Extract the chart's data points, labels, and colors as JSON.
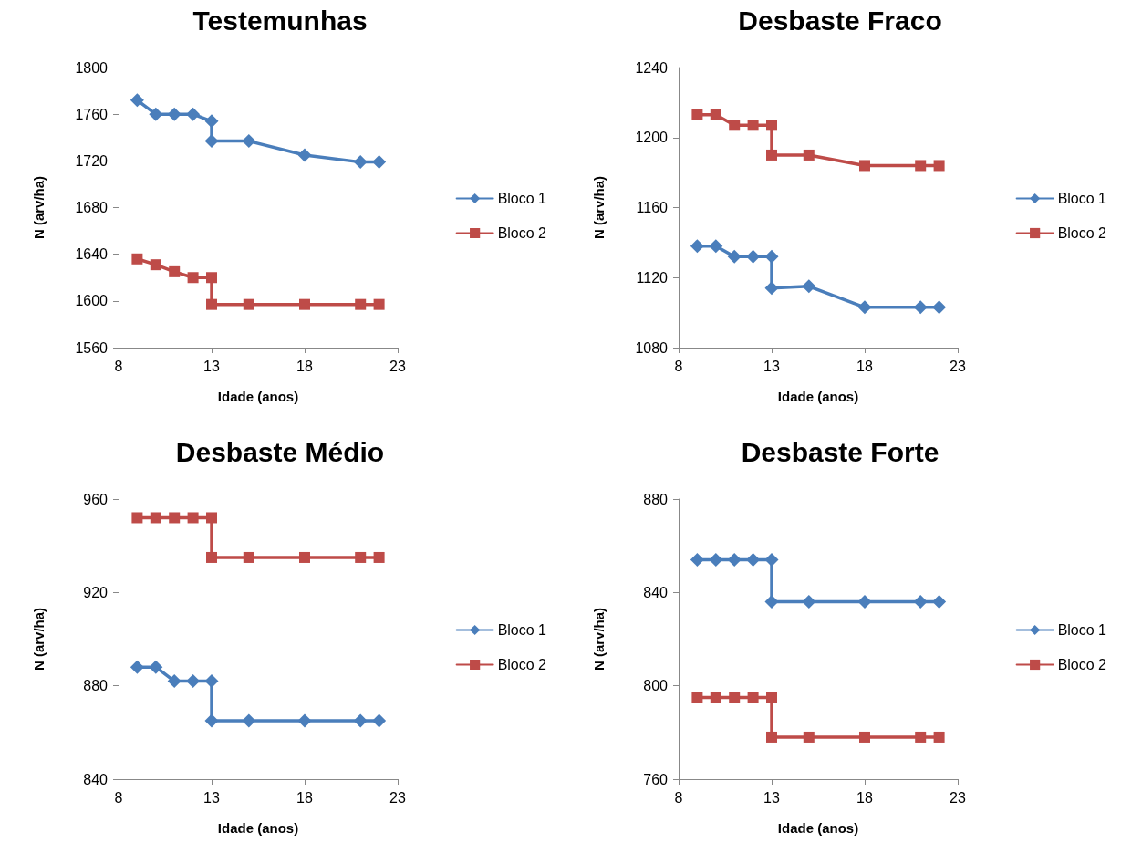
{
  "chart_data": [
    {
      "type": "line",
      "title": "Testemunhas",
      "xlabel": "Idade (anos)",
      "ylabel": "N (arv/ha)",
      "x": [
        9,
        10,
        11,
        12,
        13,
        13,
        15,
        18,
        21,
        22
      ],
      "xlim": [
        8,
        23
      ],
      "xticks": [
        8,
        13,
        18,
        23
      ],
      "ylim": [
        1560,
        1800
      ],
      "yticks": [
        1560,
        1600,
        1640,
        1680,
        1720,
        1760,
        1800
      ],
      "legend": "right",
      "grid": false,
      "series": [
        {
          "name": "Bloco 1",
          "color": "#4a7ebb",
          "marker": "diamond",
          "values": [
            1772,
            1760,
            1760,
            1760,
            1754,
            1737,
            1737,
            1725,
            1719,
            1719
          ]
        },
        {
          "name": "Bloco 2",
          "color": "#be4b48",
          "marker": "square",
          "values": [
            1636,
            1631,
            1625,
            1620,
            1620,
            1597,
            1597,
            1597,
            1597,
            1597
          ]
        }
      ]
    },
    {
      "type": "line",
      "title": "Desbaste Fraco",
      "xlabel": "Idade (anos)",
      "ylabel": "N (arv/ha)",
      "x": [
        9,
        10,
        11,
        12,
        13,
        13,
        15,
        18,
        21,
        22
      ],
      "xlim": [
        8,
        23
      ],
      "xticks": [
        8,
        13,
        18,
        23
      ],
      "ylim": [
        1080,
        1240
      ],
      "yticks": [
        1080,
        1120,
        1160,
        1200,
        1240
      ],
      "legend": "right",
      "grid": false,
      "series": [
        {
          "name": "Bloco 1",
          "color": "#4a7ebb",
          "marker": "diamond",
          "values": [
            1138,
            1138,
            1132,
            1132,
            1132,
            1114,
            1115,
            1103,
            1103,
            1103
          ]
        },
        {
          "name": "Bloco 2",
          "color": "#be4b48",
          "marker": "square",
          "values": [
            1213,
            1213,
            1207,
            1207,
            1207,
            1190,
            1190,
            1184,
            1184,
            1184
          ]
        }
      ]
    },
    {
      "type": "line",
      "title": "Desbaste Médio",
      "xlabel": "Idade (anos)",
      "ylabel": "N (arv/ha)",
      "x": [
        9,
        10,
        11,
        12,
        13,
        13,
        15,
        18,
        21,
        22
      ],
      "xlim": [
        8,
        23
      ],
      "xticks": [
        8,
        13,
        18,
        23
      ],
      "ylim": [
        840,
        960
      ],
      "yticks": [
        840,
        880,
        920,
        960
      ],
      "legend": "right",
      "grid": false,
      "series": [
        {
          "name": "Bloco 1",
          "color": "#4a7ebb",
          "marker": "diamond",
          "values": [
            888,
            888,
            882,
            882,
            882,
            865,
            865,
            865,
            865,
            865
          ]
        },
        {
          "name": "Bloco 2",
          "color": "#be4b48",
          "marker": "square",
          "values": [
            952,
            952,
            952,
            952,
            952,
            935,
            935,
            935,
            935,
            935
          ]
        }
      ]
    },
    {
      "type": "line",
      "title": "Desbaste Forte",
      "xlabel": "Idade (anos)",
      "ylabel": "N (arv/ha)",
      "x": [
        9,
        10,
        11,
        12,
        13,
        13,
        15,
        18,
        21,
        22
      ],
      "xlim": [
        8,
        23
      ],
      "xticks": [
        8,
        13,
        18,
        23
      ],
      "ylim": [
        760,
        880
      ],
      "yticks": [
        760,
        800,
        840,
        880
      ],
      "legend": "right",
      "grid": false,
      "series": [
        {
          "name": "Bloco 1",
          "color": "#4a7ebb",
          "marker": "diamond",
          "values": [
            854,
            854,
            854,
            854,
            854,
            836,
            836,
            836,
            836,
            836
          ]
        },
        {
          "name": "Bloco 2",
          "color": "#be4b48",
          "marker": "square",
          "values": [
            795,
            795,
            795,
            795,
            795,
            778,
            778,
            778,
            778,
            778
          ]
        }
      ]
    }
  ]
}
